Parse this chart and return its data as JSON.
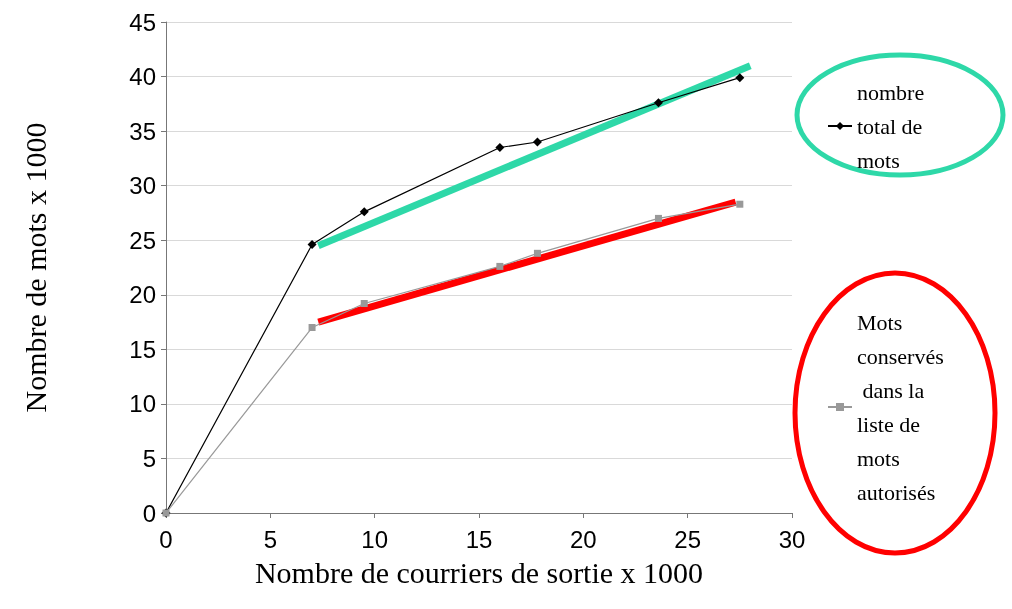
{
  "chart_data": {
    "type": "line",
    "xlabel": "Nombre de courriers de sortie x 1000",
    "ylabel": "Nombre de mots x 1000",
    "xlim": [
      0,
      30
    ],
    "xticks": [
      0,
      5,
      10,
      15,
      20,
      25,
      30
    ],
    "ylim": [
      0,
      45
    ],
    "yticks": [
      0,
      5,
      10,
      15,
      20,
      25,
      30,
      35,
      40,
      45
    ],
    "grid": "y",
    "legend": "right",
    "series": [
      {
        "name": "nombre total de mots",
        "color": "#000000",
        "marker": "diamond",
        "x": [
          0,
          7.0,
          9.5,
          16.0,
          17.8,
          23.6,
          27.5
        ],
        "values": [
          0,
          24.6,
          27.6,
          33.5,
          34.0,
          37.6,
          39.9
        ]
      },
      {
        "name": "Mots conservés dans la liste de mots autorisés",
        "color": "#999999",
        "marker": "square",
        "x": [
          0,
          7.0,
          9.5,
          16.0,
          17.8,
          23.6,
          27.5
        ],
        "values": [
          0,
          17.0,
          19.2,
          22.6,
          23.8,
          27.0,
          28.3
        ]
      },
      {
        "color": "#2ed8a8",
        "marker": "none",
        "x": [
          7.3,
          28.0
        ],
        "values": [
          24.5,
          41.0
        ]
      },
      {
        "color": "#ff0000",
        "marker": "none",
        "x": [
          7.3,
          27.3
        ],
        "values": [
          17.5,
          28.5
        ]
      }
    ]
  }
}
